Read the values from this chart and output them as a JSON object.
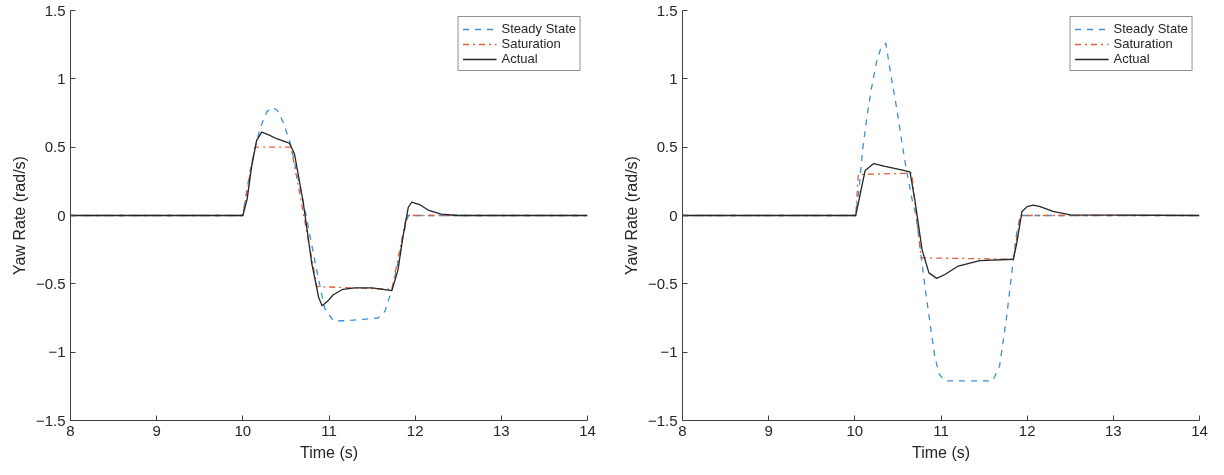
{
  "chart_data": [
    {
      "type": "line",
      "xlabel": "Time (s)",
      "ylabel": "Yaw Rate (rad/s)",
      "xlim": [
        8,
        14
      ],
      "ylim": [
        -1.5,
        1.5
      ],
      "xticks": [
        8,
        9,
        10,
        11,
        12,
        13,
        14
      ],
      "yticks": [
        -1.5,
        -1,
        -0.5,
        0,
        0.5,
        1,
        1.5
      ],
      "legend": "top right",
      "series": [
        {
          "name": "Steady State",
          "color": "#3d8fd6",
          "line_style": "dashed",
          "x": [
            8,
            10,
            10.05,
            10.1,
            10.2,
            10.28,
            10.34,
            10.4,
            10.47,
            10.55,
            10.65,
            10.75,
            10.85,
            10.95,
            11.05,
            11.2,
            11.4,
            11.57,
            11.65,
            11.73,
            11.8,
            11.87,
            11.92,
            12,
            14
          ],
          "values": [
            0,
            0,
            0.2,
            0.38,
            0.64,
            0.76,
            0.79,
            0.77,
            0.68,
            0.53,
            0.25,
            -0.05,
            -0.38,
            -0.68,
            -0.77,
            -0.77,
            -0.76,
            -0.75,
            -0.7,
            -0.54,
            -0.35,
            -0.12,
            0,
            0,
            0
          ]
        },
        {
          "name": "Saturation",
          "color": "#e0603a",
          "line_style": "dashdot",
          "x": [
            8,
            10,
            10.14,
            10.56,
            10.86,
            11.73,
            11.9,
            14
          ],
          "values": [
            0,
            0,
            0.5,
            0.5,
            -0.52,
            -0.54,
            0,
            0
          ]
        },
        {
          "name": "Actual",
          "color": "#262626",
          "line_style": "solid",
          "x": [
            8,
            10,
            10.05,
            10.1,
            10.16,
            10.22,
            10.3,
            10.4,
            10.54,
            10.6,
            10.7,
            10.8,
            10.88,
            10.92,
            10.98,
            11.05,
            11.16,
            11.3,
            11.5,
            11.73,
            11.8,
            11.86,
            11.92,
            11.96,
            12.05,
            12.15,
            12.3,
            12.5,
            14
          ],
          "values": [
            0,
            0,
            0.12,
            0.35,
            0.55,
            0.61,
            0.59,
            0.56,
            0.53,
            0.45,
            0.1,
            -0.35,
            -0.6,
            -0.66,
            -0.63,
            -0.58,
            -0.54,
            -0.53,
            -0.53,
            -0.55,
            -0.4,
            -0.15,
            0.06,
            0.097,
            0.08,
            0.04,
            0.01,
            0,
            0
          ]
        }
      ]
    },
    {
      "type": "line",
      "xlabel": "Time (s)",
      "ylabel": "Yaw Rate (rad/s)",
      "xlim": [
        8,
        14
      ],
      "ylim": [
        -1.5,
        1.5
      ],
      "xticks": [
        8,
        9,
        10,
        11,
        12,
        13,
        14
      ],
      "yticks": [
        -1.5,
        -1,
        -0.5,
        0,
        0.5,
        1,
        1.5
      ],
      "legend": "top right",
      "series": [
        {
          "name": "Steady State",
          "color": "#3d8fd6",
          "line_style": "dashed",
          "x": [
            8,
            10.01,
            10.05,
            10.09,
            10.14,
            10.19,
            10.25,
            10.3,
            10.36,
            10.42,
            10.49,
            10.55,
            10.6,
            10.67,
            10.71,
            10.82,
            10.88,
            10.93,
            10.98,
            11.04,
            11.2,
            11.4,
            11.6,
            11.68,
            11.76,
            11.84,
            11.88,
            11.92,
            12,
            14
          ],
          "values": [
            0,
            0,
            0.2,
            0.48,
            0.72,
            0.92,
            1.12,
            1.22,
            1.26,
            1.02,
            0.77,
            0.52,
            0.33,
            0.1,
            0,
            -0.55,
            -0.82,
            -1.04,
            -1.16,
            -1.21,
            -1.21,
            -1.21,
            -1.21,
            -1.1,
            -0.75,
            -0.32,
            -0.12,
            0,
            0,
            0
          ]
        },
        {
          "name": "Saturation",
          "color": "#e0603a",
          "line_style": "dashdot",
          "x": [
            8,
            10.01,
            10.04,
            10.66,
            10.77,
            11.84,
            11.92,
            14
          ],
          "values": [
            0,
            0,
            0.3,
            0.31,
            -0.31,
            -0.32,
            0,
            0
          ]
        },
        {
          "name": "Actual",
          "color": "#262626",
          "line_style": "solid",
          "x": [
            8,
            10.01,
            10.06,
            10.12,
            10.22,
            10.35,
            10.5,
            10.64,
            10.7,
            10.78,
            10.86,
            10.95,
            11.05,
            11.2,
            11.45,
            11.84,
            11.88,
            11.94,
            12.0,
            12.07,
            12.15,
            12.3,
            12.5,
            14
          ],
          "values": [
            0,
            0,
            0.15,
            0.33,
            0.38,
            0.36,
            0.34,
            0.32,
            0.1,
            -0.25,
            -0.42,
            -0.46,
            -0.43,
            -0.37,
            -0.33,
            -0.32,
            -0.2,
            0.03,
            0.065,
            0.076,
            0.065,
            0.03,
            0.005,
            0
          ]
        }
      ]
    }
  ]
}
